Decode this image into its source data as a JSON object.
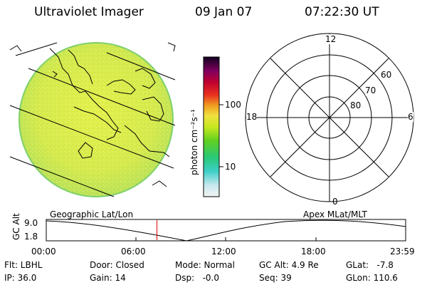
{
  "header": {
    "title": "Ultraviolet Imager",
    "date": "09 Jan 07",
    "time": "07:22:30 UT"
  },
  "colorbar": {
    "label": "photon cm⁻²s⁻¹",
    "ticks": [
      "100",
      "10"
    ]
  },
  "left_panel": {
    "caption": "Geographic Lat/Lon"
  },
  "polar_plot": {
    "caption": "Apex MLat/MLT",
    "mlt_labels": {
      "top": "12",
      "left": "18",
      "right": "6",
      "bottom": "0"
    },
    "lat_labels": [
      "60",
      "70",
      "80"
    ]
  },
  "altitude_strip": {
    "ylabel": "GC Alt",
    "ymax": "9.0",
    "ymin": "1.8",
    "time_ticks": [
      "00:00",
      "06:00",
      "12:00",
      "18:00",
      "23:59"
    ],
    "current_time_fraction": 0.308,
    "marker_color": "#e00000"
  },
  "info": {
    "flt": "Flt: LBHL",
    "ip": "IP: 36.0",
    "door": "Door: Closed",
    "gain": "Gain: 14",
    "mode": "Mode: Normal",
    "dsp": "Dsp:   -0.0",
    "gc_alt": "GC Alt: 4.9 Re",
    "seq": "Seq: 39",
    "glat": "GLat:   -7.8",
    "glon": "GLon: 110.6"
  },
  "colors": {
    "image_fill": "#d6ec4a",
    "image_edge": "#9edc5c",
    "accent_marker": "#e00000"
  }
}
